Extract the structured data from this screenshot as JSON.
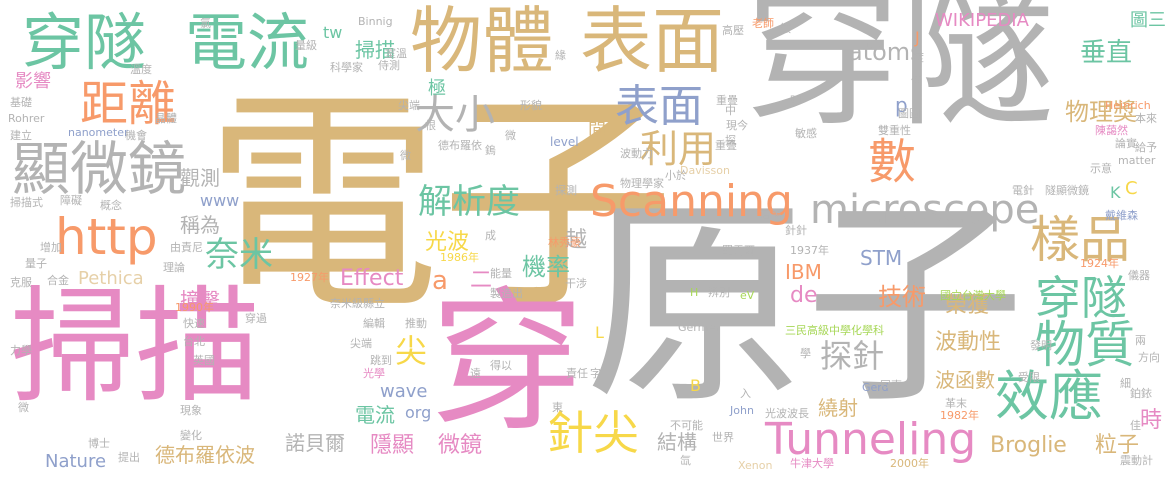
{
  "palette": {
    "tan": "#d9b77a",
    "gray": "#b3b3b3",
    "pink": "#e68ac3",
    "teal": "#6cc5a3",
    "orange": "#f79a6a",
    "blue": "#8fa0cb",
    "lime": "#a7d757",
    "gold": "#f7d849",
    "light": "#e6d0a8"
  },
  "words": [
    "電子",
    "穿隧",
    "原子",
    "掃描",
    "穿",
    "電流",
    "物體",
    "表面",
    "穿隧",
    "距離",
    "顯微鏡",
    "大小",
    "表面",
    "利用",
    "http",
    "數",
    "樣品",
    "microscope",
    "Scanning",
    "Tunneling",
    "針尖",
    "效應",
    "物質",
    "穿隧",
    "解析度",
    "奈米",
    "探針",
    "atoms",
    "WIKIPEDIA",
    "垂直",
    "物理獎",
    "光波",
    "越",
    "機率",
    "二",
    "Effect",
    "尖",
    "技術",
    "STM",
    "IBM",
    "de",
    "榮獲",
    "波動性",
    "Broglie",
    "粒子",
    "時",
    "結構",
    "繞射",
    "微鏡",
    "隱顯",
    "諾貝爾",
    "德布羅依波",
    "Nature",
    "電流",
    "wave",
    "org",
    "撞擊",
    "稱為",
    "觀測",
    "影響",
    "www",
    "Pethica",
    "tw",
    "掃描",
    "極",
    "間",
    "p",
    "J",
    "C",
    "K",
    "L",
    "B",
    "a",
    "圖三",
    "波函數",
    "Binnig",
    "Davisson",
    "Germer",
    "Heinrich",
    "Rohrer",
    "nanometer",
    "matter",
    "level",
    "John",
    "Gerd",
    "Xenon",
    "eV",
    "H",
    "1927年",
    "1937年",
    "1924年",
    "1986年",
    "1990年",
    "1982年",
    "2000年",
    "三民高級中學化學科",
    "國立台灣大學",
    "牛津大學",
    "陳藹然",
    "戴維森",
    "林秀豪",
    "羅雷爾",
    "老師",
    "科學家",
    "物理學家",
    "探測",
    "穿過",
    "光學",
    "台北",
    "英國",
    "縣立",
    "奈米級",
    "光波波長",
    "辨別",
    "世界",
    "不可能",
    "同事",
    "發明",
    "革末",
    "細",
    "佳",
    "兩",
    "方向",
    "受限",
    "鉑銥",
    "震動計",
    "儀器",
    "針針",
    "石墨",
    "隧顯微鏡",
    "雙重性",
    "示意",
    "論實",
    "給予",
    "本來",
    "敏感",
    "圖圖",
    "便",
    "度",
    "叩",
    "高壓",
    "鑲",
    "量級",
    "侍測",
    "溫度",
    "基礎",
    "建立",
    "機會",
    "晶體",
    "概念",
    "障礙",
    "掃描式",
    "增加",
    "量子",
    "克服",
    "力學",
    "合金",
    "由責尼",
    "理論",
    "製造出",
    "干涉",
    "能量",
    "博士",
    "提出",
    "變化",
    "現象",
    "推動",
    "編輯",
    "快速",
    "尖端",
    "跳到",
    "遠",
    "得以",
    "責任",
    "字",
    "入",
    "鎢",
    "根",
    "尖端",
    "形貌",
    "重疊",
    "現今",
    "德布羅依",
    "波動力",
    "小於",
    "微",
    "成",
    "重疊",
    "中",
    "探",
    "電針",
    "學",
    "東",
    "氯",
    "室溫",
    "緣",
    "微",
    "微",
    "氙"
  ]
}
